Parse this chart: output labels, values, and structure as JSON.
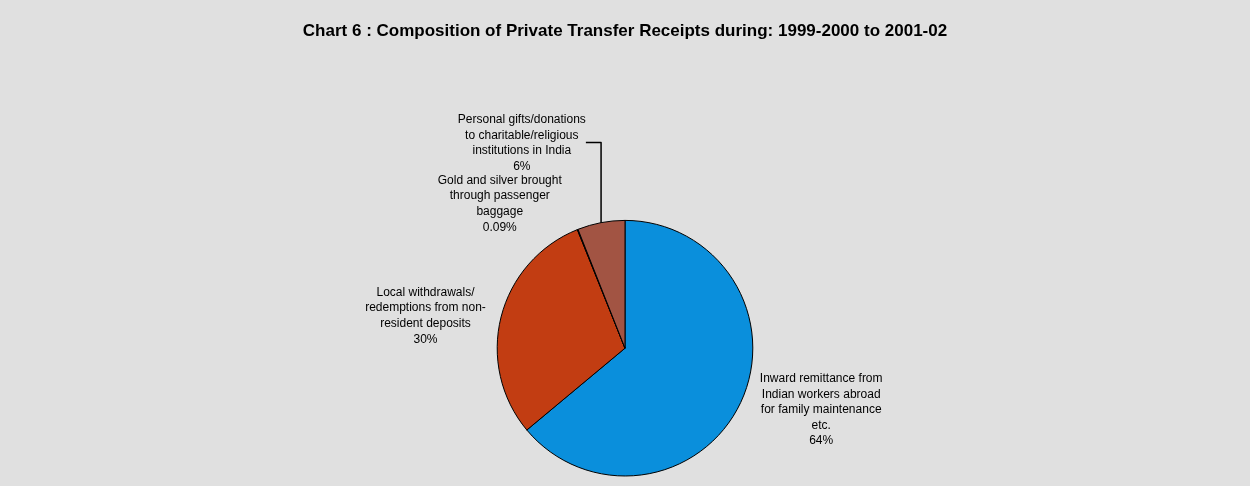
{
  "chart_data": {
    "type": "pie",
    "title": "Chart 6 : Composition of Private Transfer Receipts during: 1999-2000 to 2001-02",
    "categories": [
      "Inward remittance from Indian workers abroad for family maintenance etc.",
      "Local withdrawals/ redemptions from non-resident deposits",
      "Gold and silver brought through passenger baggage",
      "Personal gifts/donations to charitable/religious institutions in India"
    ],
    "values": [
      64,
      30,
      0.09,
      6
    ],
    "colors": [
      "#0a8fdc",
      "#c23d12",
      "#101010",
      "#a25443"
    ],
    "value_labels": [
      "64%",
      "30%",
      "0.09%",
      "6%"
    ],
    "legend": false
  }
}
